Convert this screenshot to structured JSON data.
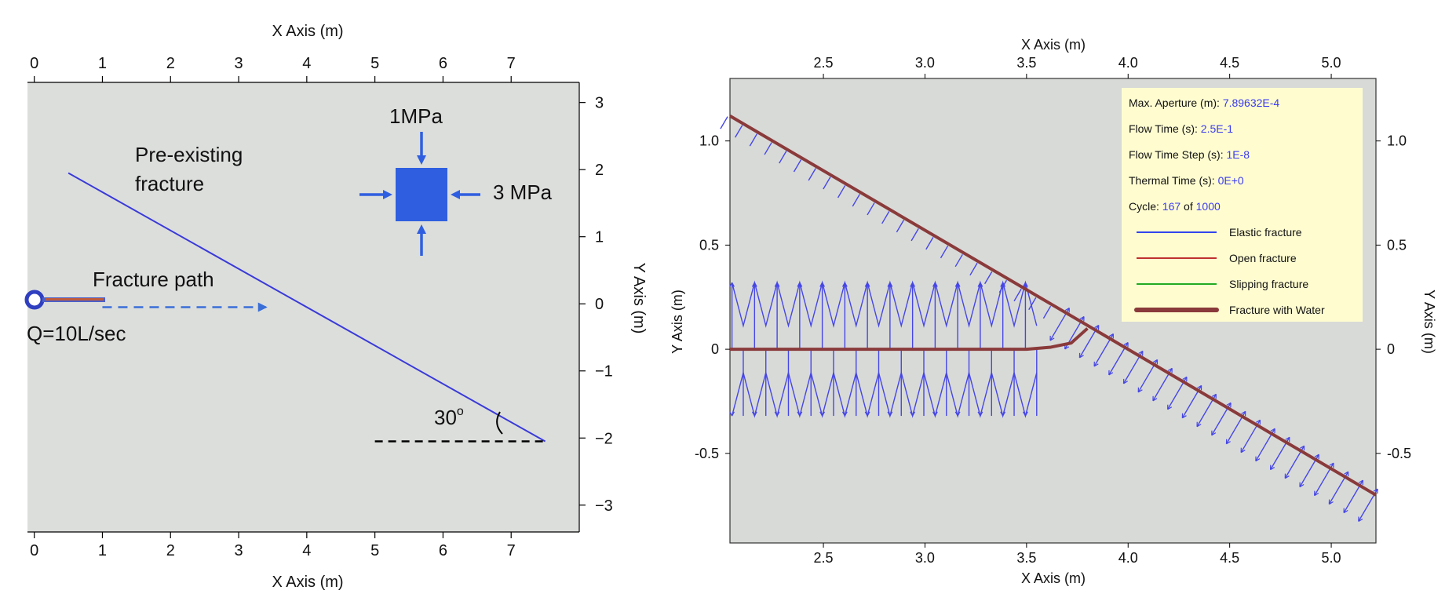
{
  "chart_data": [
    {
      "type": "line",
      "panel": "left",
      "xlabel": "X Axis (m)",
      "ylabel": "Y Axis (m)",
      "xlim": [
        -0.1,
        8.0
      ],
      "ylim": [
        -3.4,
        3.3
      ],
      "xticks": [
        0,
        1,
        2,
        3,
        4,
        5,
        6,
        7
      ],
      "yticks": [
        3,
        2,
        1,
        0,
        -1,
        -2,
        -3
      ],
      "series": [
        {
          "name": "",
          "style": "solid",
          "color": "#3a3ad8",
          "points": [
            [
              0.5,
              1.95
            ],
            [
              7.5,
              -2.05
            ]
          ]
        },
        {
          "name": "",
          "style": "dashed",
          "color": "#3a6fd8",
          "points": [
            [
              1.0,
              -0.05
            ],
            [
              3.4,
              -0.05
            ]
          ]
        },
        {
          "name": "",
          "style": "dashed",
          "color": "#000000",
          "points": [
            [
              5.0,
              -2.05
            ],
            [
              7.5,
              -2.05
            ]
          ]
        }
      ],
      "annotations": {
        "preexisting_line1": "Pre-existing",
        "preexisting_line2": "fracture",
        "fracture_path": "Fracture path",
        "flow_rate": "Q=10L/sec",
        "stress_vertical": "1MPa",
        "stress_horizontal": "3 MPa",
        "angle": "30",
        "angle_unit": "o"
      },
      "colors": {
        "background": "#dcdedc",
        "stress_box": "#2f5fe0"
      }
    },
    {
      "type": "line",
      "panel": "right",
      "xlabel": "X Axis (m)",
      "ylabel": "Y Axis (m)",
      "xlim": [
        2.04,
        5.22
      ],
      "ylim": [
        -0.93,
        1.3
      ],
      "xticks": [
        "2.5",
        "3.0",
        "3.5",
        "4.0",
        "4.5",
        "5.0"
      ],
      "yticks": [
        "1.0",
        "0.5",
        "0",
        "-0.5"
      ],
      "series": [
        {
          "name": "Fracture with Water",
          "color": "#8a3a3a",
          "points": [
            [
              2.04,
              1.12
            ],
            [
              3.86,
              0.08
            ],
            [
              5.22,
              -0.7
            ]
          ]
        },
        {
          "name": "Fracture with Water",
          "color": "#8a3a3a",
          "points": [
            [
              2.04,
              0.0
            ],
            [
              3.5,
              0.0
            ],
            [
              3.62,
              0.01
            ],
            [
              3.72,
              0.03
            ],
            [
              3.8,
              0.1
            ]
          ]
        }
      ],
      "legend": {
        "position": "top-right",
        "info": [
          {
            "label": "Max. Aperture (m):",
            "value": "7.89632E-4"
          },
          {
            "label": "Flow Time (s):",
            "value": "2.5E-1"
          },
          {
            "label": "Flow Time Step (s):",
            "value": "1E-8"
          },
          {
            "label": "Thermal Time (s):",
            "value": "0E+0"
          },
          {
            "label": "Cycle:",
            "value": "167",
            "sep": "of",
            "value2": "1000"
          }
        ],
        "entries": [
          {
            "label": "Elastic fracture",
            "color": "#3344ee"
          },
          {
            "label": "Open fracture",
            "color": "#c03030"
          },
          {
            "label": "Slipping fracture",
            "color": "#22aa22"
          },
          {
            "label": "Fracture with Water",
            "color": "#8a3a3a"
          }
        ]
      },
      "colors": {
        "background": "#d8dad8",
        "legend_bg": "#fffdd0",
        "info_value": "#3a3af0",
        "vector": "#4646e6"
      }
    }
  ]
}
